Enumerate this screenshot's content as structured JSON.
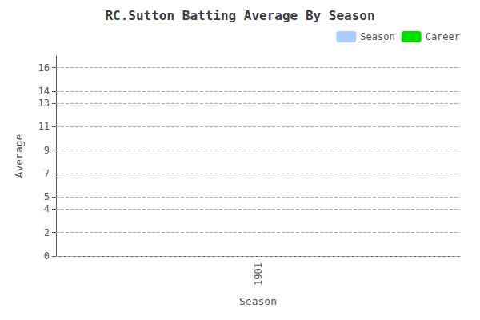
{
  "chart_data": {
    "type": "bar",
    "title": "RC.Sutton Batting Average By Season",
    "xlabel": "Season",
    "ylabel": "Average",
    "x": [],
    "series": [
      {
        "name": "Season",
        "color": "#aaccff",
        "values": []
      },
      {
        "name": "Career",
        "color": "#00dd00",
        "values": []
      }
    ],
    "xlim": [
      1900.5,
      1901.5
    ],
    "xticks": [
      1901
    ],
    "ylim": [
      0,
      17
    ],
    "yticks": [
      0,
      2,
      4,
      5,
      7,
      9,
      11,
      13,
      14,
      16
    ],
    "grid": true,
    "legend": "upper right"
  }
}
